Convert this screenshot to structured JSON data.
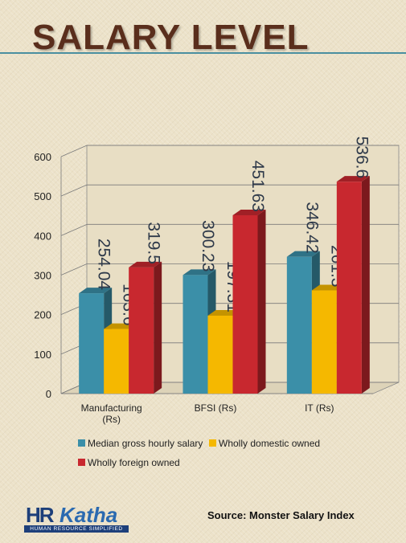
{
  "header": {
    "title": "Salary Level"
  },
  "chart_data": {
    "type": "bar",
    "categories": [
      "Manufacturing (Rs)",
      "BFSI (Rs)",
      "IT (Rs)"
    ],
    "category_lines": [
      [
        "Manufacturing",
        "(Rs)"
      ],
      [
        "BFSI (Rs)"
      ],
      [
        "IT (Rs)"
      ]
    ],
    "series": [
      {
        "name": "Median gross hourly salary",
        "color": "#3b8fa8",
        "values": [
          254.04,
          300.23,
          346.42
        ],
        "labels": [
          "254.04",
          "300.23",
          "346.42"
        ]
      },
      {
        "name": "Wholly domestic owned",
        "color": "#f5b800",
        "values": [
          163.6,
          197.31,
          261.3
        ],
        "labels": [
          "163.6",
          "197.31",
          "261.3"
        ]
      },
      {
        "name": "Wholly foreign owned",
        "color": "#c8282f",
        "values": [
          319.5,
          451.63,
          536.6
        ],
        "labels": [
          "319.5",
          "451.63",
          "536.6"
        ]
      }
    ],
    "yticks": [
      "0",
      "100",
      "200",
      "300",
      "400",
      "500",
      "600"
    ],
    "ylim": [
      0,
      600
    ],
    "grid": true,
    "legend_position": "bottom",
    "data_label_color": "#2f3a4a"
  },
  "footer": {
    "source": "Source: Monster Salary Index",
    "logo": {
      "hr": "HR",
      "katha": "Katha",
      "tagline": "HUMAN RESOURCE SIMPLIFIED"
    }
  }
}
